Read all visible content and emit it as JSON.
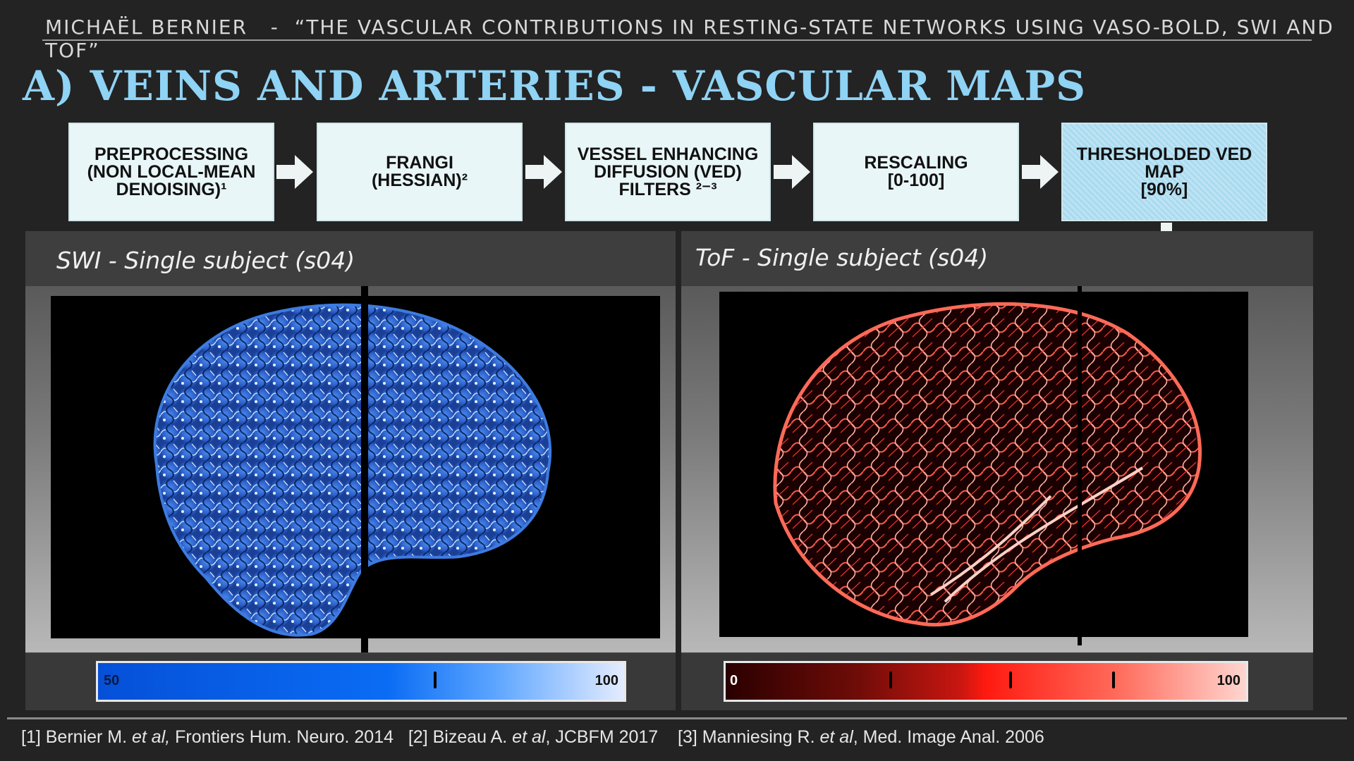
{
  "header": {
    "author": "MICHAËL BERNIER",
    "separator": "-",
    "talk_title": "“THE VASCULAR CONTRIBUTIONS IN RESTING-STATE NETWORKS USING VASO-BOLD, SWI AND TOF”"
  },
  "title": "A) VEINS AND ARTERIES - VASCULAR MAPS",
  "pipeline": [
    {
      "label": "PREPROCESSING\n(NON LOCAL-MEAN\nDENOISING)¹"
    },
    {
      "label": "FRANGI\n(HESSIAN)²"
    },
    {
      "label": "VESSEL ENHANCING\nDIFFUSION (VED)\nFILTERS ²⁻³"
    },
    {
      "label": "RESCALING\n[0-100]"
    },
    {
      "label": "THRESHOLDED VED\nMAP\n[90%]"
    }
  ],
  "panels": {
    "swi": {
      "title": "SWI - Single subject (s04)",
      "colorbar_min": "50",
      "colorbar_max": "100",
      "vessel_color": "#3c7ff0"
    },
    "tof": {
      "title": "ToF - Single subject (s04)",
      "colorbar_min": "0",
      "colorbar_max": "100",
      "vessel_color": "#ff6650"
    }
  },
  "footer": {
    "ref1_pre": "[1] Bernier M. ",
    "ref1_it": "et al,",
    "ref1_post": " Frontiers Hum. Neuro. 2014",
    "ref2_pre": "[2] Bizeau A. ",
    "ref2_it": "et al",
    "ref2_post": ", JCBFM 2017",
    "ref3_pre": "[3] Manniesing R. ",
    "ref3_it": "et al",
    "ref3_post": ", Med. Image Anal. 2006"
  },
  "colors": {
    "accent_title": "#8fd3f5",
    "step_bg": "#e9f6f8",
    "step_highlight": "#a9daf0"
  }
}
